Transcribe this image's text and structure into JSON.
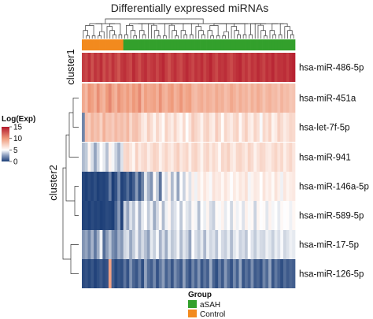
{
  "chart_data": {
    "type": "heatmap",
    "title": "Differentially expressed miRNAs",
    "colorbar": {
      "title": "Log(Exp)",
      "ticks": [
        15,
        10,
        5,
        0
      ],
      "range": [
        0,
        15
      ],
      "colors": [
        "#1d3f78",
        "#ffffff",
        "#ef9b7c",
        "#b2182b"
      ]
    },
    "group_legend": {
      "title": "Group",
      "entries": [
        {
          "label": "aSAH",
          "color": "#33a02c"
        },
        {
          "label": "Control",
          "color": "#f28a1e"
        }
      ]
    },
    "columns": {
      "groups": [
        "Control",
        "Control",
        "Control",
        "Control",
        "Control",
        "Control",
        "Control",
        "Control",
        "Control",
        "Control",
        "Control",
        "Control",
        "Control",
        "Control",
        "aSAH",
        "aSAH",
        "aSAH",
        "aSAH",
        "aSAH",
        "aSAH",
        "aSAH",
        "aSAH",
        "aSAH",
        "aSAH",
        "aSAH",
        "aSAH",
        "aSAH",
        "aSAH",
        "aSAH",
        "aSAH",
        "aSAH",
        "aSAH",
        "aSAH",
        "aSAH",
        "aSAH",
        "aSAH",
        "aSAH",
        "aSAH",
        "aSAH",
        "aSAH",
        "aSAH",
        "aSAH",
        "aSAH",
        "aSAH",
        "aSAH",
        "aSAH",
        "aSAH",
        "aSAH",
        "aSAH",
        "aSAH",
        "aSAH",
        "aSAH",
        "aSAH",
        "aSAH",
        "aSAH",
        "aSAH",
        "aSAH",
        "aSAH",
        "aSAH",
        "aSAH",
        "aSAH",
        "aSAH",
        "aSAH",
        "aSAH",
        "aSAH",
        "aSAH",
        "aSAH",
        "aSAH",
        "aSAH",
        "aSAH",
        "aSAH",
        "aSAH"
      ]
    },
    "clusters": [
      {
        "label": "cluster1",
        "rows": [
          "hsa-miR-486-5p"
        ]
      },
      {
        "label": "cluster2",
        "rows": [
          "hsa-miR-451a",
          "hsa-let-7f-5p",
          "hsa-miR-941",
          "hsa-miR-146a-5p",
          "hsa-miR-589-5p",
          "hsa-miR-17-5p",
          "hsa-miR-126-5p"
        ]
      }
    ],
    "rows": [
      {
        "label": "hsa-miR-486-5p",
        "values": [
          13.6,
          13.2,
          14.1,
          12.8,
          13.9,
          13.4,
          14.2,
          12.9,
          13.7,
          13.0,
          14.0,
          13.3,
          12.6,
          13.8,
          14.1,
          13.5,
          13.1,
          14.3,
          13.6,
          12.9,
          13.8,
          14.2,
          13.3,
          13.7,
          14.0,
          13.2,
          13.9,
          14.4,
          13.5,
          12.8,
          13.6,
          14.1,
          13.4,
          13.0,
          13.8,
          14.3,
          13.7,
          13.2,
          14.0,
          13.6,
          14.2,
          13.3,
          13.9,
          14.5,
          13.6,
          13.1,
          14.0,
          13.8,
          14.2,
          13.5,
          13.0,
          13.7,
          14.1,
          14.4,
          13.4,
          13.9,
          13.2,
          14.0,
          13.6,
          14.3,
          13.8,
          13.3,
          14.1,
          13.7,
          14.4,
          13.5,
          14.0,
          13.9,
          14.2,
          13.6,
          14.3,
          14.6
        ]
      },
      {
        "label": "hsa-miR-451a",
        "values": [
          9.2,
          8.4,
          10.1,
          9.6,
          8.8,
          10.4,
          9.1,
          8.6,
          9.9,
          10.7,
          9.3,
          8.7,
          10.2,
          9.5,
          9.0,
          9.8,
          8.9,
          10.0,
          9.4,
          10.6,
          8.5,
          9.7,
          9.1,
          9.3,
          9.6,
          8.8,
          10.3,
          9.0,
          8.6,
          9.5,
          9.9,
          8.7,
          9.2,
          10.1,
          8.9,
          9.4,
          9.7,
          8.5,
          8.2,
          8.8,
          9.1,
          8.4,
          9.0,
          8.7,
          8.3,
          9.2,
          8.6,
          8.9,
          8.1,
          8.5,
          9.3,
          8.8,
          8.2,
          9.0,
          8.4,
          8.7,
          8.0,
          8.9,
          8.3,
          9.1,
          8.6,
          7.9,
          8.5,
          8.8,
          8.2,
          8.4,
          7.8,
          8.7,
          8.1,
          8.3,
          7.7,
          7.9
        ]
      },
      {
        "label": "hsa-let-7f-5p",
        "values": [
          1.8,
          8.1,
          7.4,
          8.6,
          7.9,
          8.3,
          7.2,
          8.8,
          7.7,
          8.0,
          7.5,
          8.4,
          7.8,
          8.2,
          7.6,
          8.5,
          6.9,
          7.9,
          8.1,
          7.3,
          6.2,
          5.8,
          7.4,
          6.6,
          5.5,
          7.0,
          6.1,
          5.2,
          7.2,
          6.4,
          5.9,
          7.1,
          6.0,
          5.4,
          6.8,
          4.9,
          6.3,
          7.6,
          7.0,
          6.5,
          5.6,
          6.9,
          7.3,
          6.2,
          5.8,
          7.5,
          6.7,
          5.1,
          7.0,
          6.4,
          5.9,
          6.8,
          7.2,
          5.3,
          6.6,
          7.4,
          6.1,
          5.7,
          7.1,
          6.5,
          4.8,
          6.9,
          6.3,
          7.2,
          5.5,
          6.0,
          7.3,
          6.7,
          5.9,
          6.4,
          7.0,
          6.8
        ]
      },
      {
        "label": "hsa-miR-941",
        "values": [
          3.2,
          3.6,
          5.4,
          4.1,
          2.6,
          3.9,
          5.0,
          4.4,
          3.3,
          5.6,
          4.7,
          3.8,
          2.9,
          4.2,
          6.8,
          7.1,
          6.2,
          5.4,
          7.3,
          6.0,
          6.7,
          7.0,
          5.8,
          6.5,
          7.2,
          6.9,
          5.6,
          6.4,
          7.1,
          6.3,
          5.9,
          6.8,
          7.4,
          6.1,
          6.6,
          7.0,
          5.7,
          6.9,
          7.2,
          6.4,
          5.5,
          6.7,
          7.1,
          6.0,
          6.8,
          6.3,
          5.3,
          7.0,
          6.6,
          7.3,
          6.2,
          5.8,
          6.9,
          7.1,
          6.5,
          6.0,
          7.2,
          6.7,
          5.6,
          6.4,
          7.0,
          6.8,
          6.1,
          5.9,
          6.6,
          7.1,
          6.3,
          6.9,
          5.7,
          6.5,
          7.0,
          6.2
        ]
      },
      {
        "label": "hsa-miR-146a-5p",
        "values": [
          0.2,
          0.0,
          0.3,
          0.1,
          0.4,
          0.0,
          0.2,
          0.1,
          0.3,
          1.6,
          0.0,
          0.5,
          2.0,
          0.1,
          0.4,
          1.2,
          0.2,
          0.8,
          2.4,
          0.6,
          1.8,
          4.4,
          3.0,
          2.2,
          5.2,
          3.6,
          1.4,
          4.8,
          4.0,
          5.6,
          3.2,
          4.6,
          2.6,
          5.0,
          3.8,
          5.4,
          4.2,
          5.8,
          4.6,
          6.0,
          5.2,
          6.2,
          5.6,
          4.8,
          6.4,
          5.9,
          6.1,
          5.3,
          6.3,
          5.7,
          4.9,
          6.0,
          5.4,
          6.2,
          5.8,
          6.5,
          4.7,
          5.5,
          6.1,
          5.9,
          5.0,
          6.3,
          5.6,
          6.0,
          5.2,
          6.4,
          5.7,
          4.6,
          6.2,
          5.5,
          5.9,
          6.1
        ]
      },
      {
        "label": "hsa-miR-589-5p",
        "values": [
          0.1,
          0.2,
          0.0,
          0.3,
          0.1,
          0.2,
          0.0,
          0.1,
          0.3,
          0.2,
          0.0,
          1.0,
          2.4,
          0.1,
          3.8,
          2.6,
          4.2,
          3.4,
          4.8,
          3.0,
          4.4,
          5.0,
          3.6,
          4.6,
          2.8,
          4.0,
          5.2,
          3.2,
          4.6,
          5.4,
          3.8,
          4.2,
          4.9,
          3.5,
          5.1,
          4.3,
          3.9,
          5.3,
          4.7,
          3.3,
          5.0,
          4.5,
          5.5,
          4.1,
          3.7,
          5.2,
          4.8,
          5.6,
          4.4,
          5.0,
          3.9,
          5.4,
          4.6,
          5.1,
          4.2,
          5.7,
          4.8,
          5.3,
          3.8,
          5.5,
          4.9,
          5.2,
          4.3,
          5.6,
          4.7,
          5.0,
          4.4,
          5.3,
          4.9,
          5.1,
          4.6,
          5.4
        ]
      },
      {
        "label": "hsa-miR-17-5p",
        "values": [
          2.2,
          2.6,
          1.8,
          3.0,
          1.5,
          2.8,
          4.6,
          1.2,
          2.4,
          3.4,
          2.0,
          1.6,
          2.9,
          2.3,
          3.9,
          4.2,
          2.7,
          3.6,
          4.6,
          3.1,
          4.0,
          3.3,
          2.5,
          4.4,
          3.7,
          4.8,
          3.0,
          4.1,
          2.8,
          4.5,
          3.5,
          3.9,
          4.7,
          3.2,
          4.3,
          3.8,
          2.6,
          4.9,
          4.1,
          3.6,
          4.4,
          3.1,
          4.6,
          3.9,
          4.2,
          3.4,
          4.8,
          4.0,
          3.7,
          4.5,
          3.2,
          4.3,
          4.7,
          3.8,
          4.1,
          3.5,
          4.9,
          4.2,
          3.6,
          4.4,
          4.0,
          3.9,
          4.6,
          4.3,
          3.7,
          4.5,
          4.1,
          4.8,
          3.9,
          4.2,
          4.6,
          4.4
        ]
      },
      {
        "label": "hsa-miR-126-5p",
        "values": [
          0.3,
          0.5,
          0.2,
          0.6,
          0.1,
          0.4,
          0.7,
          0.3,
          0.5,
          9.6,
          0.8,
          0.2,
          0.6,
          0.4,
          1.4,
          0.5,
          2.2,
          1.0,
          0.6,
          1.6,
          0.4,
          2.6,
          1.2,
          0.8,
          1.9,
          0.5,
          1.5,
          2.4,
          0.9,
          1.7,
          0.6,
          2.0,
          1.3,
          0.7,
          2.5,
          1.1,
          0.5,
          1.8,
          0.9,
          2.2,
          0.6,
          1.4,
          0.8,
          2.8,
          1.0,
          0.4,
          1.6,
          0.7,
          2.3,
          1.2,
          0.5,
          1.9,
          0.9,
          2.7,
          0.6,
          1.3,
          0.8,
          2.1,
          0.7,
          1.0,
          0.5,
          1.8,
          1.1,
          2.6,
          0.6,
          1.5,
          0.9,
          0.4,
          1.2,
          0.7,
          1.0,
          0.8
        ]
      }
    ]
  }
}
